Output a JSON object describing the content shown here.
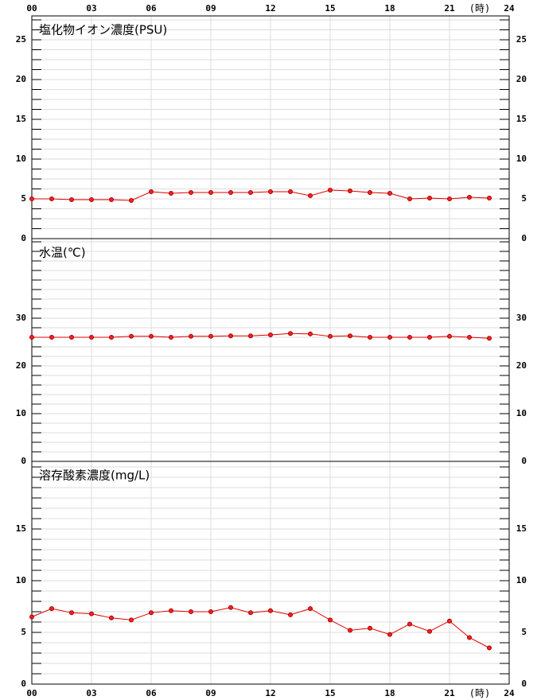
{
  "chart_data": [
    {
      "type": "line",
      "title": "塩化物イオン濃度(PSU)",
      "x_label": "(時)",
      "xtick_labels": "top",
      "x": [
        0,
        1,
        2,
        3,
        4,
        5,
        6,
        7,
        8,
        9,
        10,
        11,
        12,
        13,
        14,
        15,
        16,
        17,
        18,
        19,
        20,
        21,
        22,
        23
      ],
      "values": [
        5.0,
        5.0,
        4.9,
        4.9,
        4.9,
        4.8,
        5.9,
        5.7,
        5.8,
        5.8,
        5.8,
        5.8,
        5.9,
        5.9,
        5.4,
        6.1,
        6.0,
        5.8,
        5.7,
        5.0,
        5.1,
        5.0,
        5.2,
        5.1
      ],
      "color": "#e00000",
      "xlim": [
        0,
        24
      ],
      "xticks": [
        {
          "value": 0,
          "label": "00"
        },
        {
          "value": 3,
          "label": "03"
        },
        {
          "value": 6,
          "label": "06"
        },
        {
          "value": 9,
          "label": "09"
        },
        12,
        15,
        18,
        21,
        24
      ],
      "ylim": [
        0,
        28
      ],
      "yticks": [
        0,
        5,
        10,
        15,
        20,
        25
      ],
      "minor_yticks": [
        1.25,
        2.5,
        3.75,
        6.25,
        7.5,
        8.75,
        11.25,
        12.5,
        13.75,
        16.25,
        17.5,
        18.75,
        21.25,
        22.5,
        23.75,
        26.25,
        27.5
      ],
      "grid": true
    },
    {
      "type": "line",
      "title": "水温(℃)",
      "xtick_labels": "none",
      "x": [
        0,
        1,
        2,
        3,
        4,
        5,
        6,
        7,
        8,
        9,
        10,
        11,
        12,
        13,
        14,
        15,
        16,
        17,
        18,
        19,
        20,
        21,
        22,
        23
      ],
      "values": [
        26.0,
        26.0,
        26.0,
        26.0,
        26.0,
        26.2,
        26.2,
        26.0,
        26.2,
        26.2,
        26.3,
        26.3,
        26.5,
        26.8,
        26.7,
        26.2,
        26.3,
        26.0,
        26.0,
        26.0,
        26.0,
        26.2,
        26.0,
        25.8
      ],
      "color": "#e00000",
      "xlim": [
        0,
        24
      ],
      "xticks": [
        0,
        3,
        6,
        9,
        12,
        15,
        18,
        21,
        24
      ],
      "ylim": [
        0,
        46.67
      ],
      "yticks": [
        0,
        10,
        20,
        30
      ],
      "minor_yticks": [
        2,
        4,
        6,
        8,
        12,
        14,
        16,
        18,
        22,
        24,
        26,
        28,
        32,
        34,
        36,
        38,
        40,
        42,
        44,
        46
      ],
      "grid": true
    },
    {
      "type": "line",
      "title": "溶存酸素濃度(mg/L)",
      "x_label": "(時)",
      "xtick_labels": "bottom",
      "x": [
        0,
        1,
        2,
        3,
        4,
        5,
        6,
        7,
        8,
        9,
        10,
        11,
        12,
        13,
        14,
        15,
        16,
        17,
        18,
        19,
        20,
        21,
        22,
        23
      ],
      "values": [
        6.5,
        7.3,
        6.9,
        6.8,
        6.4,
        6.2,
        6.9,
        7.1,
        7.0,
        7.0,
        7.4,
        6.9,
        7.1,
        6.7,
        7.3,
        6.2,
        5.2,
        5.4,
        4.8,
        5.8,
        5.1,
        6.1,
        4.5,
        3.5
      ],
      "color": "#e00000",
      "xlim": [
        0,
        24
      ],
      "xticks": [
        {
          "value": 0,
          "label": "00"
        },
        {
          "value": 3,
          "label": "03"
        },
        {
          "value": 6,
          "label": "06"
        },
        {
          "value": 9,
          "label": "09"
        },
        12,
        15,
        18,
        21,
        24
      ],
      "ylim": [
        0,
        21.54
      ],
      "yticks": [
        0,
        5,
        10,
        15
      ],
      "minor_yticks": [
        1,
        2,
        3,
        4,
        6,
        7,
        8,
        9,
        11,
        12,
        13,
        14,
        16,
        17,
        18,
        19,
        20,
        21
      ],
      "grid": true
    }
  ]
}
